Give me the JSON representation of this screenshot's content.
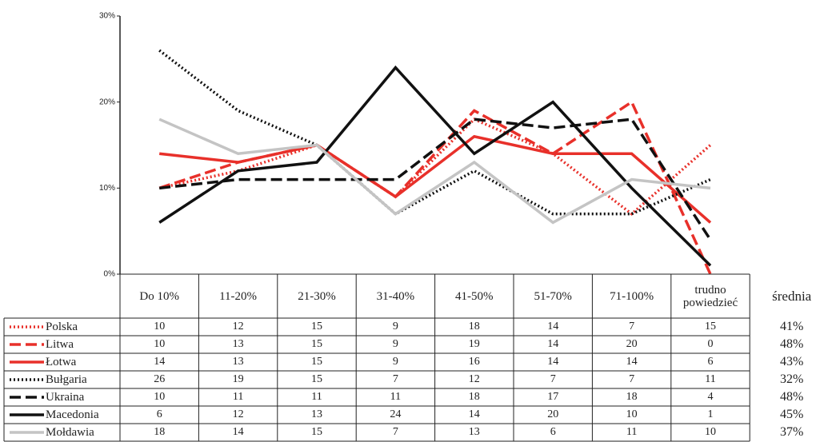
{
  "chart_data": {
    "type": "line",
    "categories": [
      "Do 10%",
      "11-20%",
      "21-30%",
      "31-40%",
      "41-50%",
      "51-70%",
      "71-100%",
      "trudno powiedzieć"
    ],
    "average_header": "średnia",
    "ylim": [
      0,
      30
    ],
    "yticks": [
      {
        "value": 0,
        "label": "0%"
      },
      {
        "value": 10,
        "label": "10%"
      },
      {
        "value": 20,
        "label": "20%"
      },
      {
        "value": 30,
        "label": "30%"
      }
    ],
    "series": [
      {
        "name": "Polska",
        "color": "#e8302a",
        "dash": "dotted",
        "values": [
          10,
          12,
          15,
          9,
          18,
          14,
          7,
          15
        ],
        "average_label": "41%"
      },
      {
        "name": "Litwa",
        "color": "#e8302a",
        "dash": "dashed",
        "values": [
          10,
          13,
          15,
          9,
          19,
          14,
          20,
          0
        ],
        "average_label": "48%"
      },
      {
        "name": "Łotwa",
        "color": "#e8302a",
        "dash": "solid",
        "values": [
          14,
          13,
          15,
          9,
          16,
          14,
          14,
          6
        ],
        "average_label": "43%"
      },
      {
        "name": "Bułgaria",
        "color": "#111111",
        "dash": "dotted",
        "values": [
          26,
          19,
          15,
          7,
          12,
          7,
          7,
          11
        ],
        "average_label": "32%"
      },
      {
        "name": "Ukraina",
        "color": "#111111",
        "dash": "dashed",
        "values": [
          10,
          11,
          11,
          11,
          18,
          17,
          18,
          4
        ],
        "average_label": "48%"
      },
      {
        "name": "Macedonia",
        "color": "#111111",
        "dash": "solid",
        "values": [
          6,
          12,
          13,
          24,
          14,
          20,
          10,
          1
        ],
        "average_label": "45%"
      },
      {
        "name": "Mołdawia",
        "color": "#c4c4c4",
        "dash": "solid",
        "values": [
          18,
          14,
          15,
          7,
          13,
          6,
          11,
          10
        ],
        "average_label": "37%"
      }
    ]
  }
}
